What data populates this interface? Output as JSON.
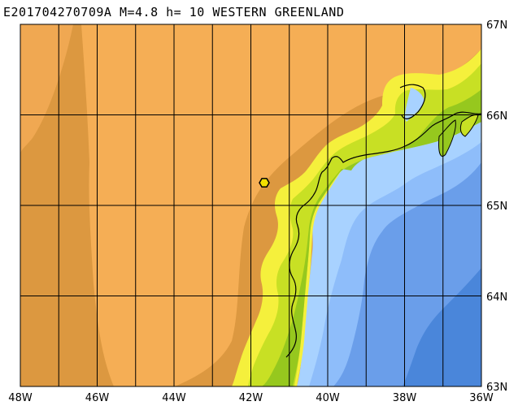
{
  "map": {
    "title": "E201704270709A M=4.8 h= 10 WESTERN GREENLAND",
    "lon_ticks": [
      "48W",
      "46W",
      "44W",
      "42W",
      "40W",
      "38W",
      "36W"
    ],
    "lat_ticks": [
      "67N",
      "66N",
      "65N",
      "64N",
      "63N"
    ],
    "extent": {
      "lon_min": -48,
      "lon_max": -36,
      "lat_min": 63,
      "lat_max": 67
    },
    "epicenter": {
      "lon": -41.65,
      "lat": 65.25,
      "marker": "hexagon-marker"
    },
    "colors": {
      "ice_dark": "#DC9840",
      "ice_light": "#F5AE55",
      "coast_yellow": "#F5F03C",
      "coast_lime": "#C8E024",
      "coast_green": "#96C81E",
      "sea_pale": "#A8D2FF",
      "sea_light": "#8EBDFA",
      "sea_mid": "#6A9EEA",
      "sea_deep": "#4A86DA",
      "grid": "#000000",
      "marker_fill": "#F2E000"
    }
  }
}
